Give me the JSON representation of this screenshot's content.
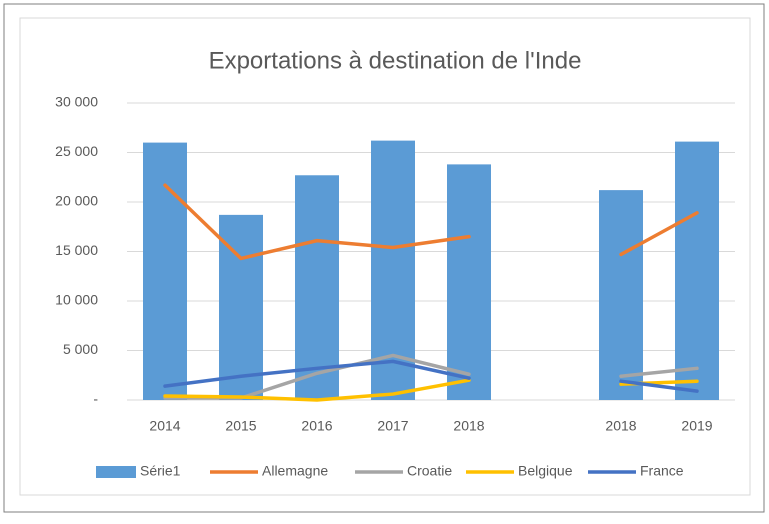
{
  "chart_data": {
    "type": "combo",
    "title": "Exportations à destination de l'Inde",
    "categories": [
      "2014",
      "2015",
      "2016",
      "2017",
      "2018",
      null,
      "2018",
      "2019"
    ],
    "series": [
      {
        "name": "Série1",
        "type": "bar",
        "color": "#5b9bd5",
        "values": [
          26000,
          18700,
          22700,
          26200,
          23800,
          null,
          21200,
          26100
        ]
      },
      {
        "name": "Allemagne",
        "type": "line",
        "color": "#ed7d31",
        "values": [
          21700,
          14300,
          16100,
          15400,
          16500,
          null,
          14700,
          18900
        ]
      },
      {
        "name": "Croatie",
        "type": "line",
        "color": "#a5a5a5",
        "values": [
          200,
          200,
          2700,
          4500,
          2600,
          null,
          2400,
          3200
        ]
      },
      {
        "name": "Belgique",
        "type": "line",
        "color": "#ffc000",
        "values": [
          400,
          300,
          0,
          600,
          2000,
          null,
          1600,
          1900
        ]
      },
      {
        "name": "France",
        "type": "line",
        "color": "#4472c4",
        "values": [
          1400,
          2400,
          3200,
          3900,
          2200,
          null,
          1900,
          900
        ]
      }
    ],
    "ylim": [
      0,
      30000
    ],
    "yticks": [
      {
        "value": 0,
        "label": "-"
      },
      {
        "value": 5000,
        "label": "5 000"
      },
      {
        "value": 10000,
        "label": "10 000"
      },
      {
        "value": 15000,
        "label": "15 000"
      },
      {
        "value": 20000,
        "label": "20 000"
      },
      {
        "value": 25000,
        "label": "25 000"
      },
      {
        "value": 30000,
        "label": "30 000"
      }
    ],
    "grid": true,
    "legend": "bottom"
  }
}
